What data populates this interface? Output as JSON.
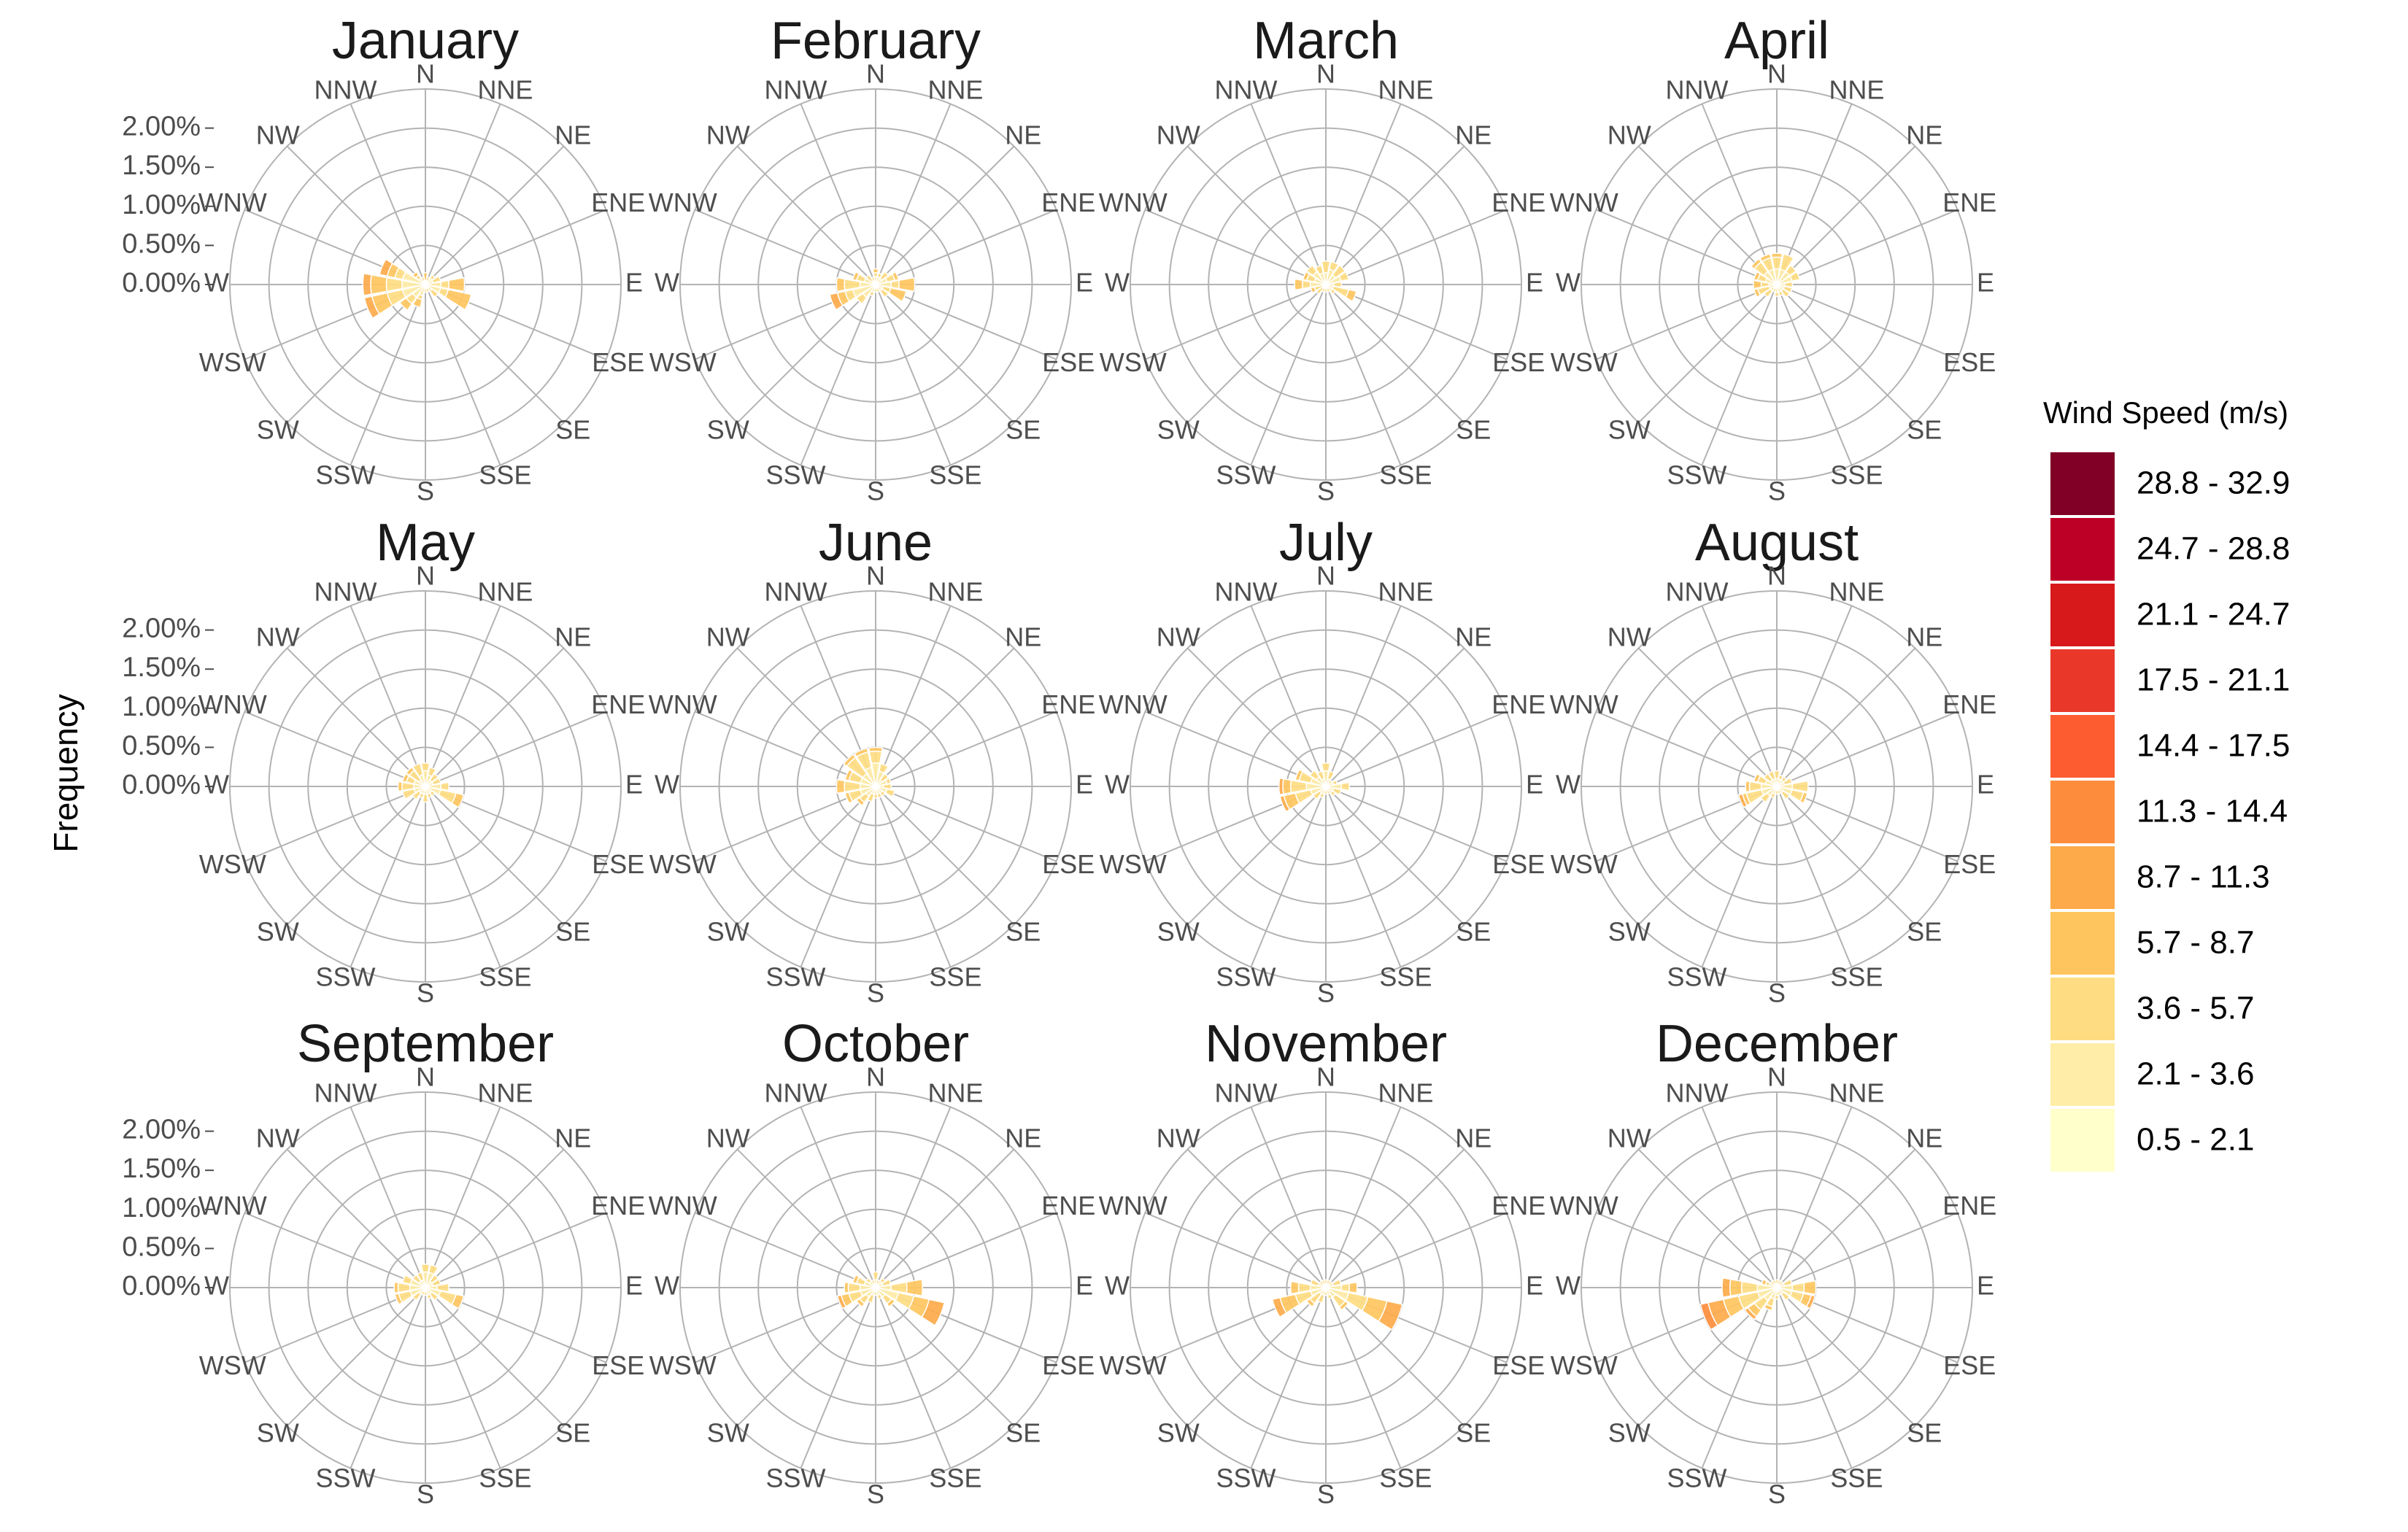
{
  "chart_data": {
    "type": "wind-rose",
    "ylabel": "Frequency",
    "radial_ticks": [
      "0.00%",
      "0.50%",
      "1.00%",
      "1.50%",
      "2.00%"
    ],
    "radial_tick_values": [
      0,
      0.5,
      1.0,
      1.5,
      2.0
    ],
    "ylim": [
      0,
      2.5
    ],
    "directions": [
      "N",
      "NNE",
      "NE",
      "ENE",
      "E",
      "ESE",
      "SE",
      "SSE",
      "S",
      "SSW",
      "SW",
      "WSW",
      "W",
      "WNW",
      "NW",
      "NNW"
    ],
    "legend": {
      "title": "Wind Speed (m/s)",
      "placement": "right",
      "bins": [
        {
          "label": "28.8 - 32.9",
          "color": "#800026"
        },
        {
          "label": "24.7 - 28.8",
          "color": "#bd0026"
        },
        {
          "label": "21.1 - 24.7",
          "color": "#d7191c"
        },
        {
          "label": "17.5 - 21.1",
          "color": "#e9382a"
        },
        {
          "label": "14.4 - 17.5",
          "color": "#fc5c30"
        },
        {
          "label": "11.3 - 14.4",
          "color": "#fd8d3c"
        },
        {
          "label": "8.7 - 11.3",
          "color": "#fdaa4a"
        },
        {
          "label": "5.7 - 8.7",
          "color": "#fec55e"
        },
        {
          "label": "3.6 - 5.7",
          "color": "#fedc82"
        },
        {
          "label": "2.1 - 3.6",
          "color": "#ffeda8"
        },
        {
          "label": "0.5 - 2.1",
          "color": "#ffffcc"
        }
      ]
    },
    "panels": [
      {
        "month": "January",
        "speeds": [
          [
            0.15,
            0.15,
            0.1
          ],
          [
            0.1,
            0.05,
            0
          ],
          [
            0.15,
            0.05,
            0
          ],
          [
            0.2,
            0.1,
            0
          ],
          [
            0.5,
            0.3,
            0.2
          ],
          [
            0.6,
            0.4,
            0.3
          ],
          [
            0.2,
            0.1,
            0
          ],
          [
            0.1,
            0.05,
            0
          ],
          [
            0.1,
            0.05,
            0
          ],
          [
            0.3,
            0.15,
            0.1
          ],
          [
            0.4,
            0.2,
            0.1
          ],
          [
            0.8,
            0.5,
            0.3,
            0.1
          ],
          [
            0.8,
            0.5,
            0.3,
            0.1
          ],
          [
            0.6,
            0.3,
            0.2,
            0.1
          ],
          [
            0.2,
            0.1,
            0.05
          ],
          [
            0.1,
            0.05,
            0
          ]
        ]
      },
      {
        "month": "February",
        "speeds": [
          [
            0.2,
            0.1,
            0.05
          ],
          [
            0.15,
            0.05,
            0
          ],
          [
            0.2,
            0.1,
            0
          ],
          [
            0.3,
            0.15,
            0.05
          ],
          [
            0.5,
            0.3,
            0.2
          ],
          [
            0.4,
            0.3,
            0.2
          ],
          [
            0.2,
            0.1,
            0
          ],
          [
            0.1,
            0.05,
            0
          ],
          [
            0.1,
            0.05,
            0
          ],
          [
            0.15,
            0.05,
            0
          ],
          [
            0.3,
            0.1,
            0
          ],
          [
            0.6,
            0.3,
            0.2,
            0.1
          ],
          [
            0.5,
            0.3,
            0.1
          ],
          [
            0.3,
            0.15,
            0.05
          ],
          [
            0.15,
            0.1,
            0
          ],
          [
            0.1,
            0.05,
            0
          ]
        ]
      },
      {
        "month": "March",
        "speeds": [
          [
            0.3,
            0.15,
            0
          ],
          [
            0.3,
            0.1,
            0
          ],
          [
            0.3,
            0.15,
            0
          ],
          [
            0.3,
            0.1,
            0
          ],
          [
            0.2,
            0.1,
            0
          ],
          [
            0.4,
            0.3,
            0.1
          ],
          [
            0.15,
            0.05,
            0
          ],
          [
            0.1,
            0.05,
            0
          ],
          [
            0.1,
            0.05,
            0
          ],
          [
            0.1,
            0.05,
            0
          ],
          [
            0.15,
            0.1,
            0
          ],
          [
            0.2,
            0.15,
            0.05
          ],
          [
            0.4,
            0.2,
            0.1
          ],
          [
            0.3,
            0.15,
            0.05
          ],
          [
            0.3,
            0.1,
            0
          ],
          [
            0.25,
            0.1,
            0
          ]
        ]
      },
      {
        "month": "April",
        "speeds": [
          [
            0.4,
            0.2,
            0.05
          ],
          [
            0.4,
            0.2,
            0
          ],
          [
            0.3,
            0.1,
            0
          ],
          [
            0.3,
            0.1,
            0
          ],
          [
            0.2,
            0.1,
            0
          ],
          [
            0.2,
            0.1,
            0
          ],
          [
            0.2,
            0.1,
            0
          ],
          [
            0.15,
            0.05,
            0
          ],
          [
            0.15,
            0.05,
            0
          ],
          [
            0.1,
            0.05,
            0
          ],
          [
            0.2,
            0.1,
            0
          ],
          [
            0.3,
            0.2,
            0.05
          ],
          [
            0.3,
            0.2,
            0.1
          ],
          [
            0.3,
            0.15,
            0.05
          ],
          [
            0.4,
            0.2,
            0.05
          ],
          [
            0.4,
            0.2,
            0.05
          ]
        ]
      },
      {
        "month": "May",
        "speeds": [
          [
            0.3,
            0.1,
            0
          ],
          [
            0.25,
            0.1,
            0
          ],
          [
            0.2,
            0.1,
            0
          ],
          [
            0.2,
            0.1,
            0
          ],
          [
            0.3,
            0.1,
            0
          ],
          [
            0.5,
            0.3,
            0.1
          ],
          [
            0.15,
            0.05,
            0
          ],
          [
            0.15,
            0.05,
            0
          ],
          [
            0.2,
            0.1,
            0
          ],
          [
            0.15,
            0.05,
            0
          ],
          [
            0.2,
            0.1,
            0
          ],
          [
            0.3,
            0.15,
            0
          ],
          [
            0.35,
            0.2,
            0.05
          ],
          [
            0.3,
            0.15,
            0.05
          ],
          [
            0.3,
            0.2,
            0.05
          ],
          [
            0.3,
            0.15,
            0
          ]
        ]
      },
      {
        "month": "June",
        "speeds": [
          [
            0.5,
            0.2,
            0.05
          ],
          [
            0.3,
            0.1,
            0
          ],
          [
            0.2,
            0.1,
            0
          ],
          [
            0.2,
            0.05,
            0
          ],
          [
            0.2,
            0.1,
            0
          ],
          [
            0.25,
            0.1,
            0
          ],
          [
            0.15,
            0.05,
            0
          ],
          [
            0.15,
            0.05,
            0
          ],
          [
            0.15,
            0.05,
            0
          ],
          [
            0.2,
            0.1,
            0
          ],
          [
            0.3,
            0.15,
            0.05
          ],
          [
            0.4,
            0.2,
            0.05
          ],
          [
            0.5,
            0.3,
            0.1
          ],
          [
            0.4,
            0.2,
            0.05
          ],
          [
            0.5,
            0.3,
            0.05
          ],
          [
            0.5,
            0.25,
            0.05
          ]
        ]
      },
      {
        "month": "July",
        "speeds": [
          [
            0.3,
            0.1,
            0
          ],
          [
            0.2,
            0.1,
            0
          ],
          [
            0.1,
            0.05,
            0
          ],
          [
            0.15,
            0.05,
            0
          ],
          [
            0.3,
            0.1,
            0
          ],
          [
            0.2,
            0.1,
            0
          ],
          [
            0.15,
            0.05,
            0
          ],
          [
            0.1,
            0.05,
            0
          ],
          [
            0.1,
            0.05,
            0
          ],
          [
            0.15,
            0.05,
            0
          ],
          [
            0.2,
            0.1,
            0
          ],
          [
            0.6,
            0.4,
            0.2,
            0.05
          ],
          [
            0.6,
            0.35,
            0.15,
            0.05
          ],
          [
            0.4,
            0.2,
            0.05
          ],
          [
            0.25,
            0.1,
            0
          ],
          [
            0.2,
            0.1,
            0
          ]
        ]
      },
      {
        "month": "August",
        "speeds": [
          [
            0.2,
            0.1,
            0
          ],
          [
            0.15,
            0.05,
            0
          ],
          [
            0.15,
            0.05,
            0
          ],
          [
            0.2,
            0.1,
            0
          ],
          [
            0.4,
            0.2,
            0
          ],
          [
            0.4,
            0.2,
            0.05
          ],
          [
            0.2,
            0.1,
            0
          ],
          [
            0.1,
            0.05,
            0
          ],
          [
            0.1,
            0.05,
            0
          ],
          [
            0.15,
            0.05,
            0
          ],
          [
            0.25,
            0.1,
            0
          ],
          [
            0.5,
            0.3,
            0.1,
            0.05
          ],
          [
            0.4,
            0.2,
            0.05
          ],
          [
            0.3,
            0.15,
            0.05
          ],
          [
            0.2,
            0.1,
            0
          ],
          [
            0.2,
            0.1,
            0
          ]
        ]
      },
      {
        "month": "September",
        "speeds": [
          [
            0.3,
            0.1,
            0
          ],
          [
            0.3,
            0.1,
            0
          ],
          [
            0.2,
            0.1,
            0
          ],
          [
            0.2,
            0.1,
            0
          ],
          [
            0.3,
            0.15,
            0
          ],
          [
            0.5,
            0.3,
            0.1
          ],
          [
            0.2,
            0.1,
            0
          ],
          [
            0.15,
            0.05,
            0
          ],
          [
            0.1,
            0.05,
            0
          ],
          [
            0.1,
            0.05,
            0
          ],
          [
            0.2,
            0.1,
            0
          ],
          [
            0.4,
            0.2,
            0.05
          ],
          [
            0.4,
            0.2,
            0.05
          ],
          [
            0.3,
            0.1,
            0
          ],
          [
            0.2,
            0.1,
            0
          ],
          [
            0.2,
            0.1,
            0
          ]
        ]
      },
      {
        "month": "October",
        "speeds": [
          [
            0.2,
            0.1,
            0
          ],
          [
            0.1,
            0.05,
            0
          ],
          [
            0.15,
            0.05,
            0
          ],
          [
            0.2,
            0.1,
            0
          ],
          [
            0.6,
            0.4,
            0.2
          ],
          [
            0.9,
            0.6,
            0.4,
            0.2
          ],
          [
            0.3,
            0.15,
            0.05
          ],
          [
            0.15,
            0.05,
            0
          ],
          [
            0.1,
            0.05,
            0
          ],
          [
            0.2,
            0.1,
            0
          ],
          [
            0.3,
            0.15,
            0.05
          ],
          [
            0.5,
            0.3,
            0.15,
            0.05
          ],
          [
            0.4,
            0.2,
            0.05
          ],
          [
            0.3,
            0.15,
            0.05
          ],
          [
            0.15,
            0.05,
            0
          ],
          [
            0.1,
            0.05,
            0
          ]
        ]
      },
      {
        "month": "November",
        "speeds": [
          [
            0.1,
            0.05,
            0
          ],
          [
            0.1,
            0.05,
            0
          ],
          [
            0.1,
            0.05,
            0
          ],
          [
            0.2,
            0.1,
            0
          ],
          [
            0.4,
            0.2,
            0.1
          ],
          [
            1.0,
            0.7,
            0.45,
            0.2
          ],
          [
            0.35,
            0.2,
            0.05
          ],
          [
            0.15,
            0.05,
            0
          ],
          [
            0.1,
            0.05,
            0
          ],
          [
            0.2,
            0.1,
            0
          ],
          [
            0.3,
            0.2,
            0.05
          ],
          [
            0.7,
            0.5,
            0.3,
            0.1
          ],
          [
            0.45,
            0.25,
            0.1
          ],
          [
            0.2,
            0.1,
            0
          ],
          [
            0.1,
            0.05,
            0
          ],
          [
            0.1,
            0.05,
            0
          ]
        ]
      },
      {
        "month": "December",
        "speeds": [
          [
            0.1,
            0.05,
            0
          ],
          [
            0.1,
            0.05,
            0
          ],
          [
            0.1,
            0.05,
            0
          ],
          [
            0.2,
            0.1,
            0
          ],
          [
            0.5,
            0.3,
            0.15
          ],
          [
            0.5,
            0.3,
            0.15,
            0.05
          ],
          [
            0.2,
            0.1,
            0
          ],
          [
            0.1,
            0.05,
            0
          ],
          [
            0.15,
            0.05,
            0
          ],
          [
            0.3,
            0.15,
            0.05
          ],
          [
            0.5,
            0.3,
            0.15,
            0.05
          ],
          [
            1.0,
            0.75,
            0.5,
            0.3,
            0.1
          ],
          [
            0.7,
            0.45,
            0.25,
            0.1
          ],
          [
            0.2,
            0.1,
            0.05
          ],
          [
            0.1,
            0.05,
            0
          ],
          [
            0.1,
            0.05,
            0
          ]
        ]
      }
    ]
  }
}
